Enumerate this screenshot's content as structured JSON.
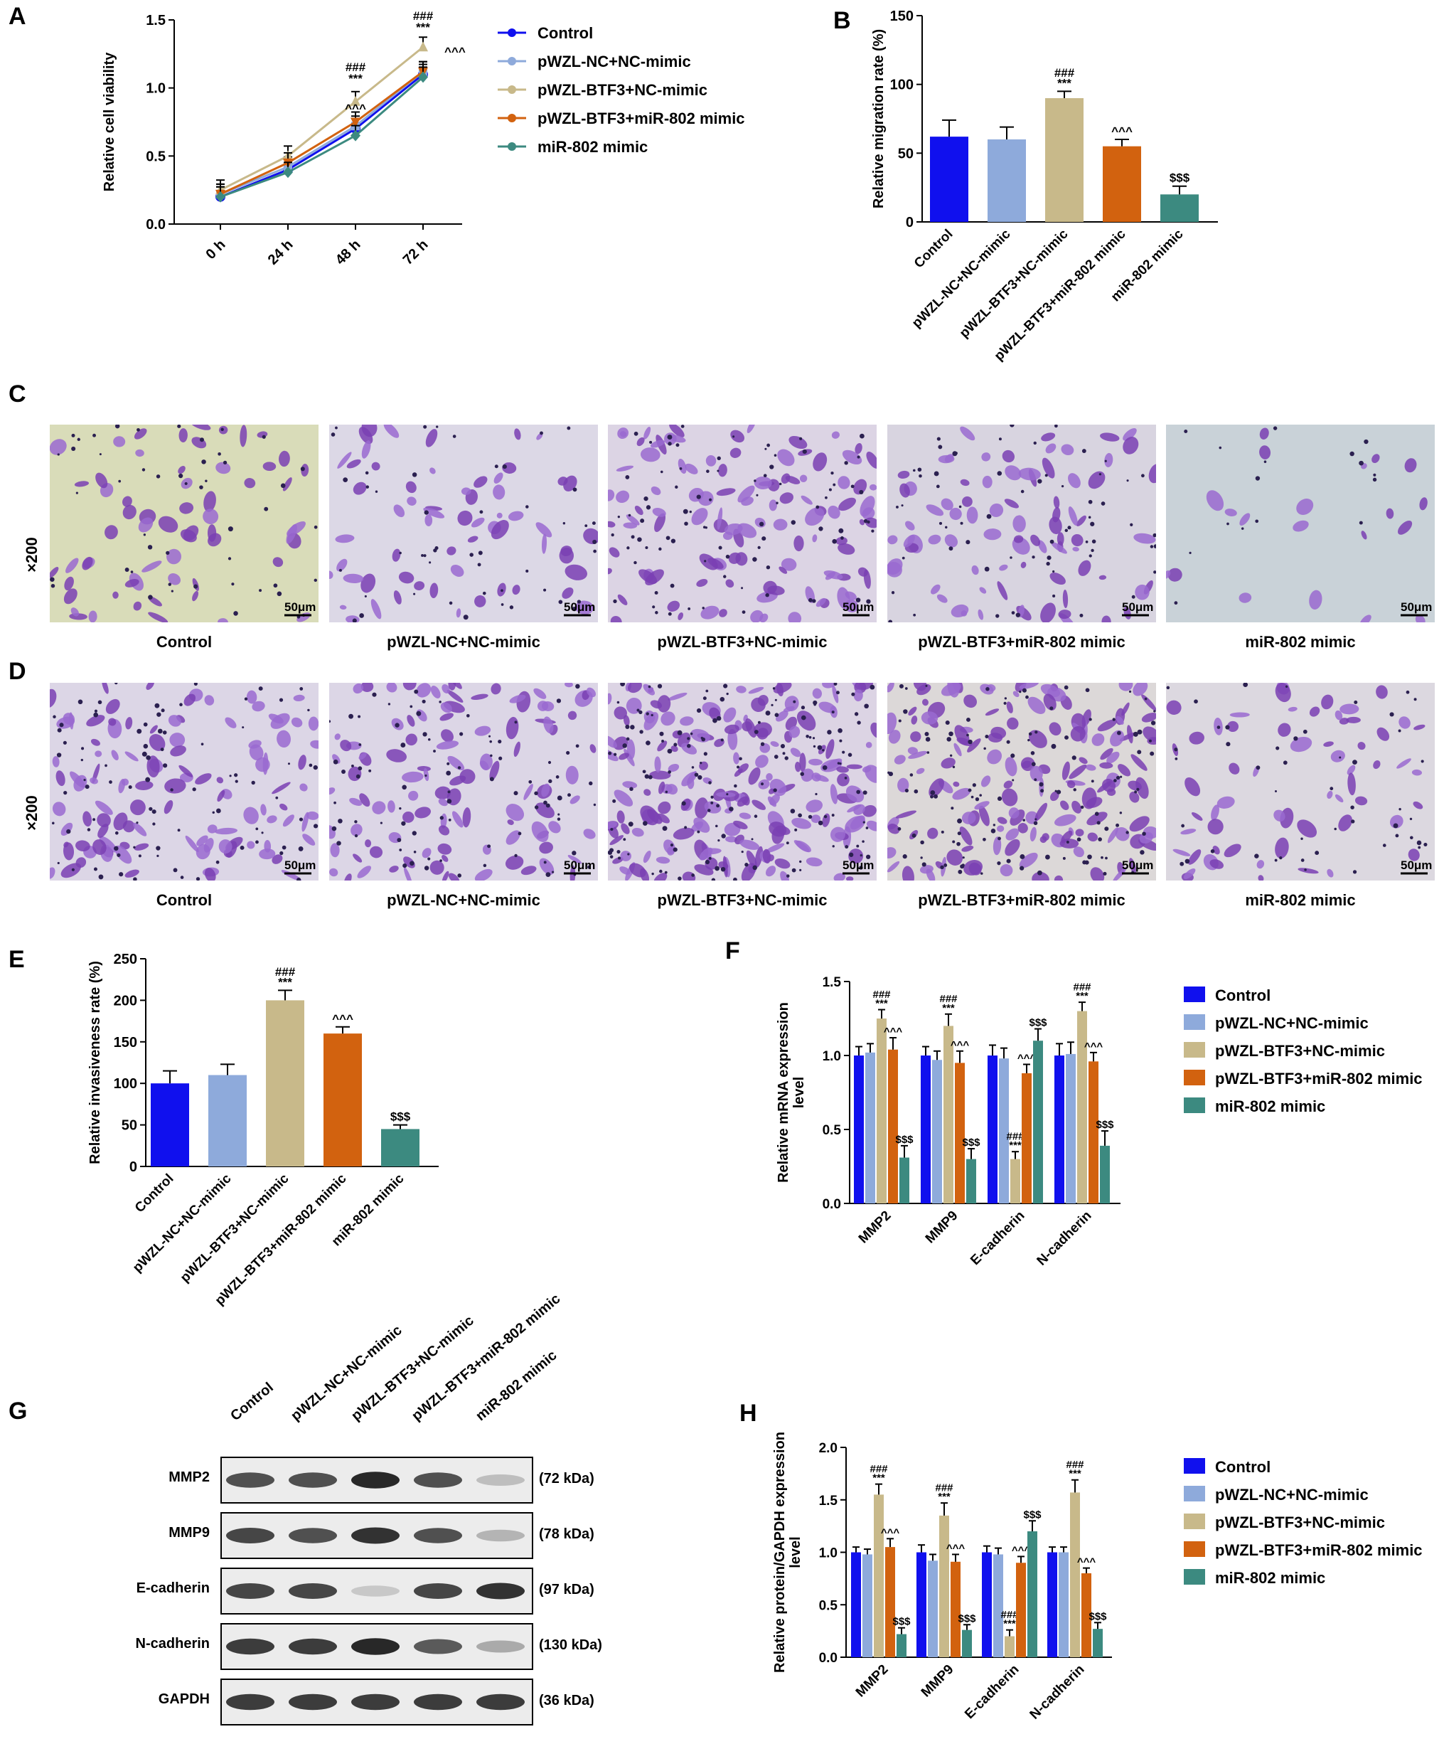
{
  "panels": {
    "A": {
      "label": "A"
    },
    "B": {
      "label": "B"
    },
    "C": {
      "label": "C",
      "magnification": "×200"
    },
    "D": {
      "label": "D",
      "magnification": "×200"
    },
    "E": {
      "label": "E"
    },
    "F": {
      "label": "F"
    },
    "G": {
      "label": "G"
    },
    "H": {
      "label": "H"
    }
  },
  "groups": [
    "Control",
    "pWZL-NC+NC-mimic",
    "pWZL-BTF3+NC-mimic",
    "pWZL-BTF3+miR-802 mimic",
    "miR-802 mimic"
  ],
  "colors": {
    "control": "#1010ee",
    "nc": "#8eaadb",
    "btf3": "#c8b98a",
    "btf3_mir": "#d2620f",
    "mir": "#3c8a80"
  },
  "scale_bar": "50μm",
  "micrographs": {
    "C": [
      {
        "caption": "Control",
        "bg": "#d9dcb9",
        "density": 60
      },
      {
        "caption": "pWZL-NC+NC-mimic",
        "bg": "#dcd8e6",
        "density": 60
      },
      {
        "caption": "pWZL-BTF3+NC-mimic",
        "bg": "#dcd4e4",
        "density": 110
      },
      {
        "caption": "pWZL-BTF3+miR-802 mimic",
        "bg": "#d8d4e0",
        "density": 80
      },
      {
        "caption": "miR-802 mimic",
        "bg": "#c9d2d8",
        "density": 20
      }
    ],
    "D": [
      {
        "caption": "Control",
        "bg": "#dcd6e6",
        "density": 110
      },
      {
        "caption": "pWZL-NC+NC-mimic",
        "bg": "#dcd6e6",
        "density": 110
      },
      {
        "caption": "pWZL-BTF3+NC-mimic",
        "bg": "#dcd4e4",
        "density": 200
      },
      {
        "caption": "pWZL-BTF3+miR-802 mimic",
        "bg": "#dcd8d8",
        "density": 160
      },
      {
        "caption": "miR-802 mimic",
        "bg": "#dcd8e0",
        "density": 60
      }
    ]
  },
  "western": {
    "rows": [
      {
        "label": "MMP2",
        "kda": "(72 kDa)",
        "intensity": [
          0.75,
          0.75,
          0.95,
          0.75,
          0.2
        ]
      },
      {
        "label": "MMP9",
        "kda": "(78 kDa)",
        "intensity": [
          0.8,
          0.75,
          0.9,
          0.75,
          0.25
        ]
      },
      {
        "label": "E-cadherin",
        "kda": "(97 kDa)",
        "intensity": [
          0.8,
          0.8,
          0.15,
          0.8,
          0.9
        ]
      },
      {
        "label": "N-cadherin",
        "kda": "(130 kDa)",
        "intensity": [
          0.85,
          0.85,
          0.95,
          0.7,
          0.3
        ]
      },
      {
        "label": "GAPDH",
        "kda": "(36 kDa)",
        "intensity": [
          0.85,
          0.85,
          0.85,
          0.85,
          0.85
        ]
      }
    ]
  },
  "chart_data": [
    {
      "panel": "A",
      "type": "line",
      "x": [
        "0 h",
        "24 h",
        "48 h",
        "72 h"
      ],
      "ylabel": "Relative cell viability",
      "xlabel": "",
      "ylim": [
        0,
        1.5
      ],
      "yticks": [
        "0.0",
        "0.5",
        "1.0",
        "1.5"
      ],
      "series": [
        {
          "name": "Control",
          "values": [
            0.2,
            0.4,
            0.7,
            1.1
          ],
          "marker": "circle",
          "color": "#1010ee"
        },
        {
          "name": "pWZL-NC+NC-mimic",
          "values": [
            0.22,
            0.42,
            0.72,
            1.12
          ],
          "marker": "square",
          "color": "#8eaadb"
        },
        {
          "name": "pWZL-BTF3+NC-mimic",
          "values": [
            0.25,
            0.5,
            0.9,
            1.3
          ],
          "marker": "triangle-up",
          "color": "#c8b98a"
        },
        {
          "name": "pWZL-BTF3+miR-802 mimic",
          "values": [
            0.22,
            0.45,
            0.75,
            1.12
          ],
          "marker": "triangle-down",
          "color": "#d2620f"
        },
        {
          "name": "miR-802 mimic",
          "values": [
            0.2,
            0.38,
            0.65,
            1.08
          ],
          "marker": "diamond",
          "color": "#3c8a80"
        }
      ],
      "annotations": [
        {
          "x": "48 h",
          "text": "###"
        },
        {
          "x": "48 h",
          "text": "***"
        },
        {
          "x": "48 h",
          "text": "^^^"
        },
        {
          "x": "72 h",
          "text": "###"
        },
        {
          "x": "72 h",
          "text": "***"
        },
        {
          "x": "72 h",
          "text": "^^^"
        }
      ]
    },
    {
      "panel": "B",
      "type": "bar",
      "categories": [
        "Control",
        "pWZL-NC+NC-mimic",
        "pWZL-BTF3+NC-mimic",
        "pWZL-BTF3+miR-802 mimic",
        "miR-802 mimic"
      ],
      "values": [
        62,
        60,
        90,
        55,
        20
      ],
      "errors": [
        12,
        9,
        5,
        5,
        6
      ],
      "annotations": [
        "",
        "",
        "###\n***",
        "^^^",
        "$$$"
      ],
      "ylabel": "Relative migration rate (%)",
      "ylim": [
        0,
        150
      ],
      "yticks": [
        "0",
        "50",
        "100",
        "150"
      ]
    },
    {
      "panel": "E",
      "type": "bar",
      "categories": [
        "Control",
        "pWZL-NC+NC-mimic",
        "pWZL-BTF3+NC-mimic",
        "pWZL-BTF3+miR-802 mimic",
        "miR-802 mimic"
      ],
      "values": [
        100,
        110,
        200,
        160,
        45
      ],
      "errors": [
        15,
        13,
        12,
        8,
        5
      ],
      "annotations": [
        "",
        "",
        "###\n***",
        "^^^",
        "$$$"
      ],
      "ylabel": "Relative invasiveness rate (%)",
      "ylim": [
        0,
        250
      ],
      "yticks": [
        "0",
        "50",
        "100",
        "150",
        "200",
        "250"
      ]
    },
    {
      "panel": "F",
      "type": "bar",
      "categories": [
        "MMP2",
        "MMP9",
        "E-cadherin",
        "N-cadherin"
      ],
      "ylabel": "Relative mRNA expression level",
      "ylim": [
        0,
        1.5
      ],
      "yticks": [
        "0.0",
        "0.5",
        "1.0",
        "1.5"
      ],
      "series": [
        {
          "name": "Control",
          "values": [
            1.0,
            1.0,
            1.0,
            1.0
          ],
          "errors": [
            0.06,
            0.06,
            0.07,
            0.08
          ]
        },
        {
          "name": "pWZL-NC+NC-mimic",
          "values": [
            1.02,
            0.97,
            0.98,
            1.01
          ],
          "errors": [
            0.06,
            0.06,
            0.07,
            0.08
          ]
        },
        {
          "name": "pWZL-BTF3+NC-mimic",
          "values": [
            1.25,
            1.2,
            0.3,
            1.3
          ],
          "errors": [
            0.06,
            0.08,
            0.05,
            0.06
          ]
        },
        {
          "name": "pWZL-BTF3+miR-802 mimic",
          "values": [
            1.04,
            0.95,
            0.88,
            0.96
          ],
          "errors": [
            0.08,
            0.08,
            0.06,
            0.06
          ]
        },
        {
          "name": "miR-802 mimic",
          "values": [
            0.31,
            0.3,
            1.1,
            0.39
          ],
          "errors": [
            0.08,
            0.07,
            0.08,
            0.1
          ]
        }
      ],
      "annotations": [
        {
          "category": "MMP2",
          "series": "pWZL-BTF3+NC-mimic",
          "text": "###\n***"
        },
        {
          "category": "MMP2",
          "series": "pWZL-BTF3+miR-802 mimic",
          "text": "^^^"
        },
        {
          "category": "MMP2",
          "series": "miR-802 mimic",
          "text": "$$$"
        },
        {
          "category": "MMP9",
          "series": "pWZL-BTF3+NC-mimic",
          "text": "###\n***"
        },
        {
          "category": "MMP9",
          "series": "pWZL-BTF3+miR-802 mimic",
          "text": "^^^"
        },
        {
          "category": "MMP9",
          "series": "miR-802 mimic",
          "text": "$$$"
        },
        {
          "category": "E-cadherin",
          "series": "pWZL-BTF3+NC-mimic",
          "text": "###\n***"
        },
        {
          "category": "E-cadherin",
          "series": "pWZL-BTF3+miR-802 mimic",
          "text": "^^^"
        },
        {
          "category": "E-cadherin",
          "series": "miR-802 mimic",
          "text": "$$$"
        },
        {
          "category": "N-cadherin",
          "series": "pWZL-BTF3+NC-mimic",
          "text": "###\n***"
        },
        {
          "category": "N-cadherin",
          "series": "pWZL-BTF3+miR-802 mimic",
          "text": "^^^"
        },
        {
          "category": "N-cadherin",
          "series": "miR-802 mimic",
          "text": "$$$"
        }
      ],
      "legend": "right"
    },
    {
      "panel": "H",
      "type": "bar",
      "categories": [
        "MMP2",
        "MMP9",
        "E-cadherin",
        "N-cadherin"
      ],
      "ylabel": "Relative protein/GAPDH expression level",
      "ylim": [
        0,
        2.0
      ],
      "yticks": [
        "0.0",
        "0.5",
        "1.0",
        "1.5",
        "2.0"
      ],
      "series": [
        {
          "name": "Control",
          "values": [
            1.0,
            1.0,
            1.0,
            1.0
          ],
          "errors": [
            0.05,
            0.07,
            0.06,
            0.05
          ]
        },
        {
          "name": "pWZL-NC+NC-mimic",
          "values": [
            0.98,
            0.92,
            0.98,
            1.0
          ],
          "errors": [
            0.05,
            0.06,
            0.06,
            0.05
          ]
        },
        {
          "name": "pWZL-BTF3+NC-mimic",
          "values": [
            1.55,
            1.35,
            0.2,
            1.57
          ],
          "errors": [
            0.1,
            0.12,
            0.06,
            0.12
          ]
        },
        {
          "name": "pWZL-BTF3+miR-802 mimic",
          "values": [
            1.05,
            0.91,
            0.9,
            0.8
          ],
          "errors": [
            0.08,
            0.07,
            0.06,
            0.05
          ]
        },
        {
          "name": "miR-802 mimic",
          "values": [
            0.22,
            0.26,
            1.2,
            0.27
          ],
          "errors": [
            0.06,
            0.05,
            0.1,
            0.06
          ]
        }
      ],
      "annotations": [
        {
          "category": "MMP2",
          "series": "pWZL-BTF3+NC-mimic",
          "text": "###\n***"
        },
        {
          "category": "MMP2",
          "series": "pWZL-BTF3+miR-802 mimic",
          "text": "^^^"
        },
        {
          "category": "MMP2",
          "series": "miR-802 mimic",
          "text": "$$$"
        },
        {
          "category": "MMP9",
          "series": "pWZL-BTF3+NC-mimic",
          "text": "###\n***"
        },
        {
          "category": "MMP9",
          "series": "pWZL-BTF3+miR-802 mimic",
          "text": "^^^"
        },
        {
          "category": "MMP9",
          "series": "miR-802 mimic",
          "text": "$$$"
        },
        {
          "category": "E-cadherin",
          "series": "pWZL-BTF3+NC-mimic",
          "text": "###\n***"
        },
        {
          "category": "E-cadherin",
          "series": "pWZL-BTF3+miR-802 mimic",
          "text": "^^^"
        },
        {
          "category": "E-cadherin",
          "series": "miR-802 mimic",
          "text": "$$$"
        },
        {
          "category": "N-cadherin",
          "series": "pWZL-BTF3+NC-mimic",
          "text": "###\n***"
        },
        {
          "category": "N-cadherin",
          "series": "pWZL-BTF3+miR-802 mimic",
          "text": "^^^"
        },
        {
          "category": "N-cadherin",
          "series": "miR-802 mimic",
          "text": "$$$"
        }
      ],
      "legend": "right"
    }
  ]
}
